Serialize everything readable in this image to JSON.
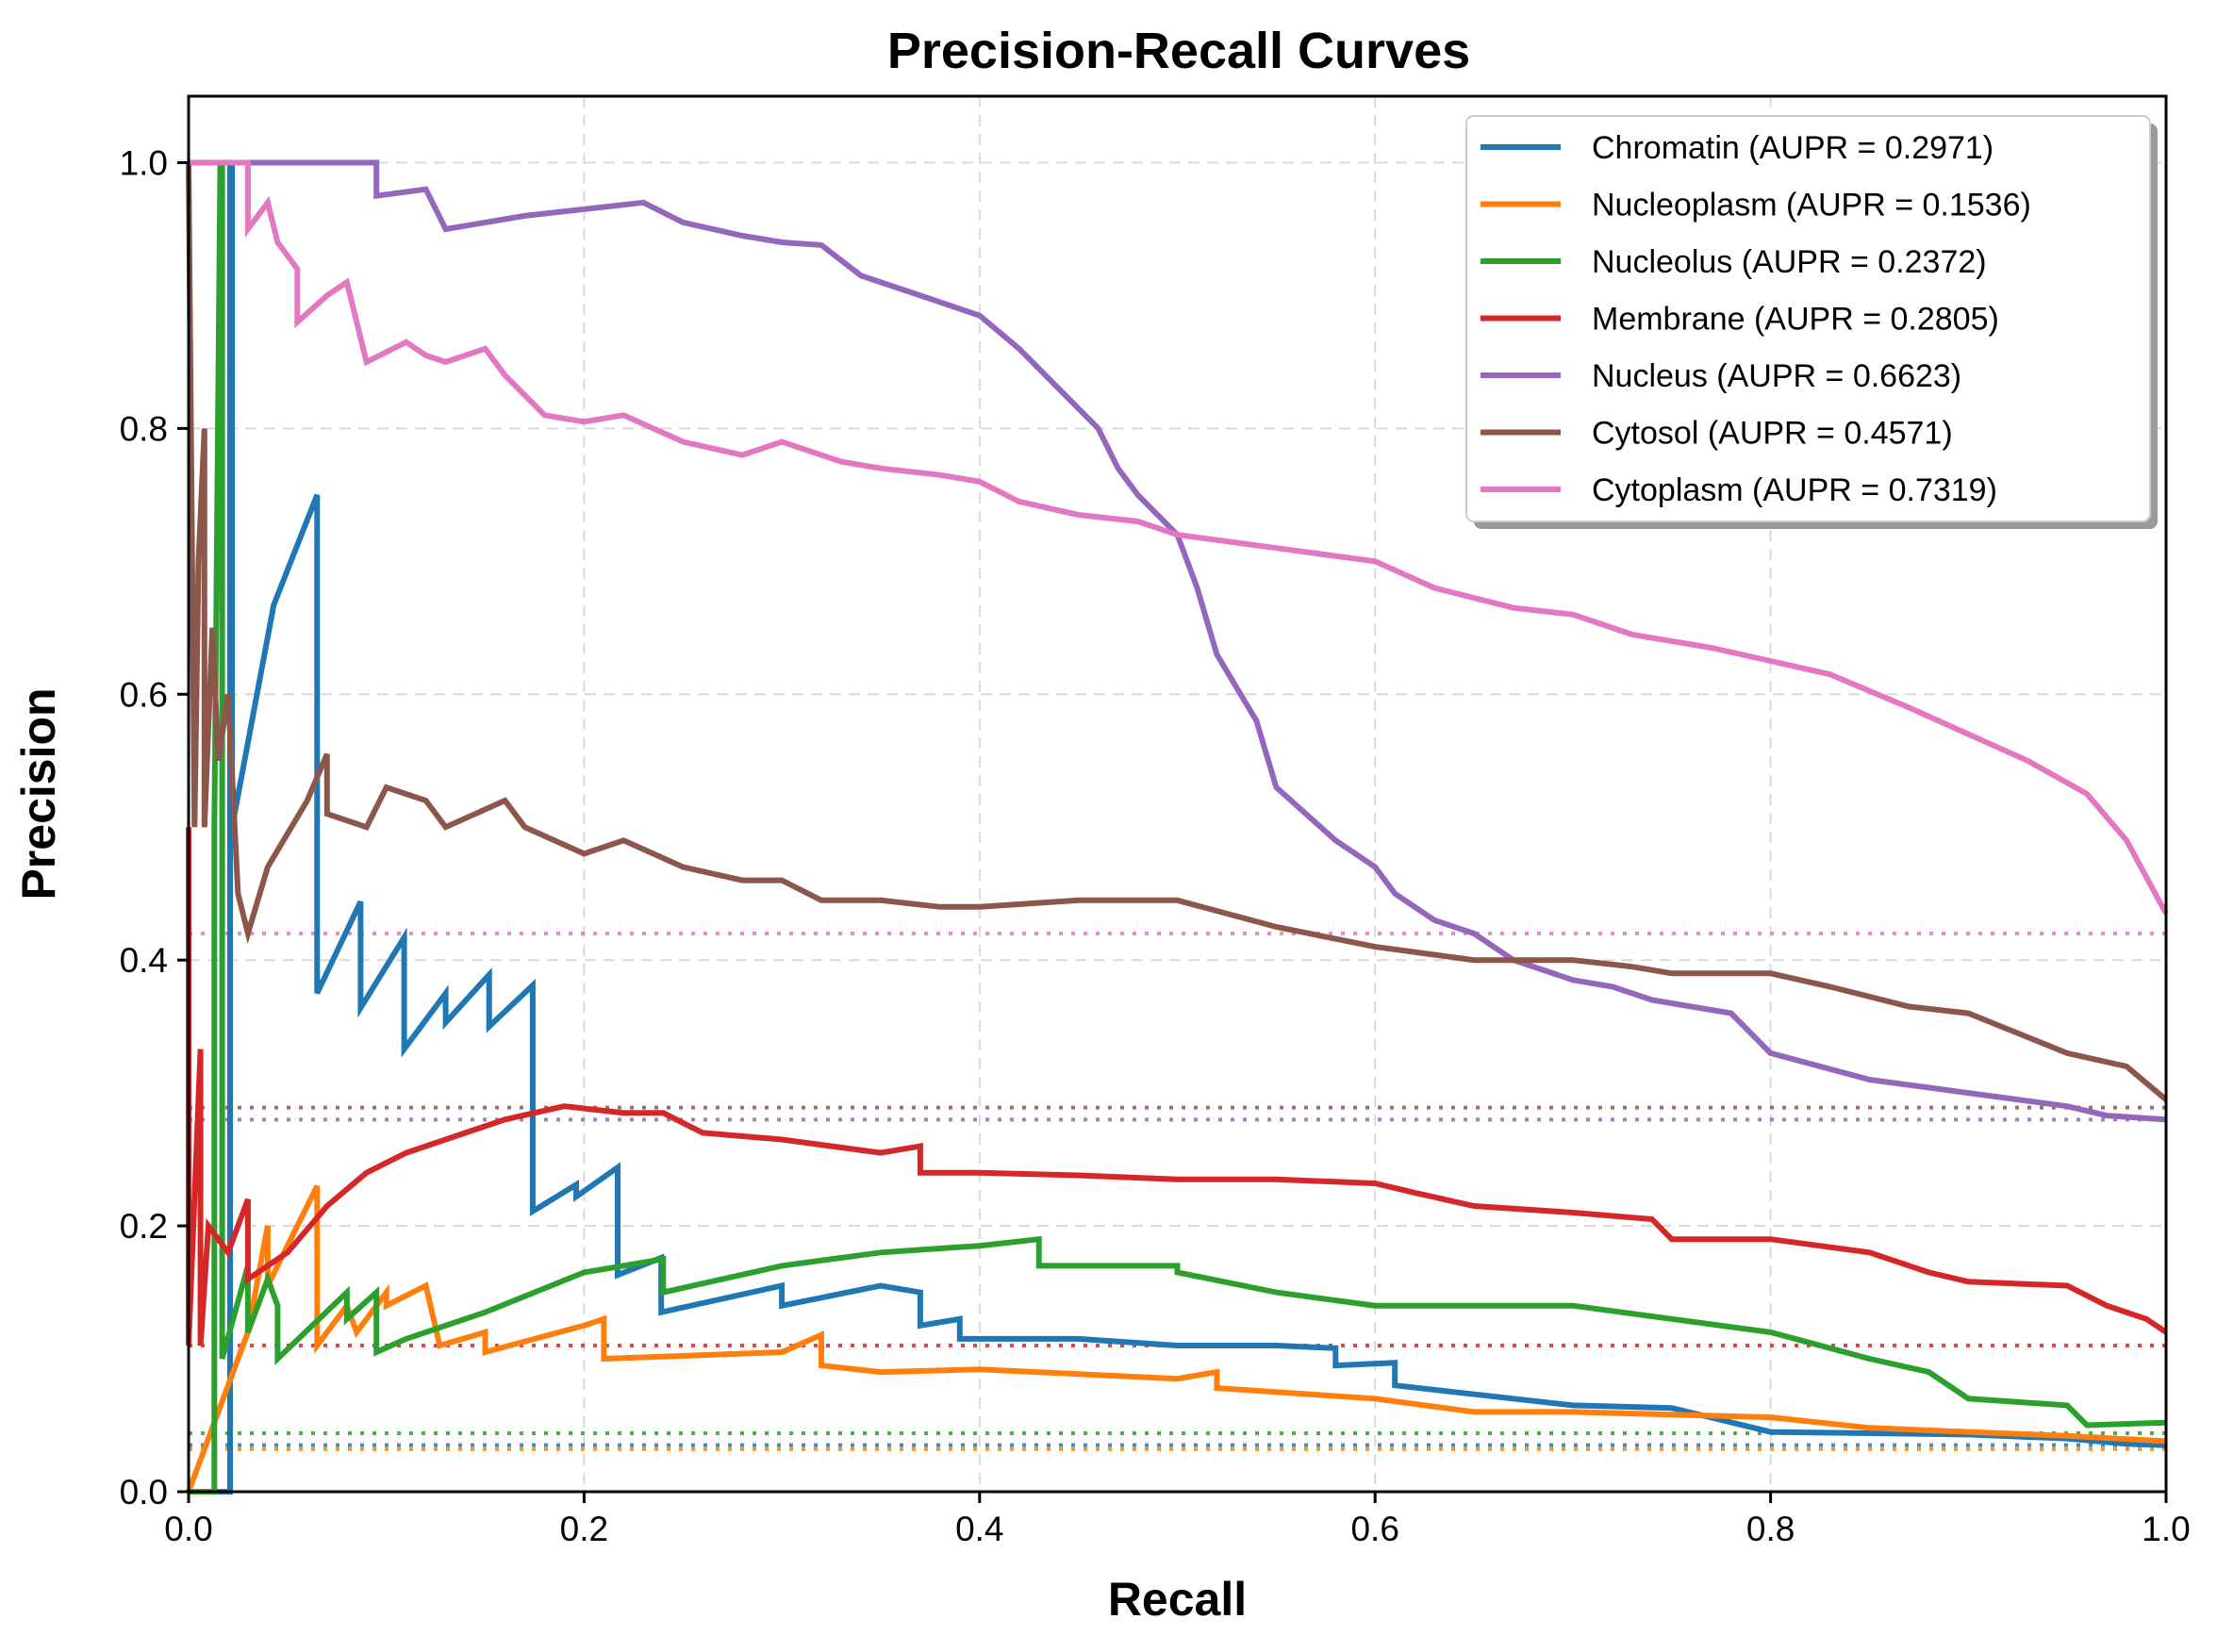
{
  "chart_data": {
    "type": "line",
    "title": "Precision-Recall Curves",
    "xlabel": "Recall",
    "ylabel": "Precision",
    "xlim": [
      0.0,
      1.0
    ],
    "ylim": [
      0.0,
      1.05
    ],
    "xticks": [
      "0.0",
      "0.2",
      "0.4",
      "0.6",
      "0.8",
      "1.0"
    ],
    "yticks": [
      "0.0",
      "0.2",
      "0.4",
      "0.6",
      "0.8",
      "1.0"
    ],
    "grid": true,
    "legend_position": "top-right",
    "series": [
      {
        "name": "Chromatin (AUPR = 0.2971)",
        "color": "#1f77b4",
        "baseline": 0.035,
        "points": [
          [
            0,
            0
          ],
          [
            0.021,
            0
          ],
          [
            0.021,
            1.0
          ],
          [
            0.022,
            1.0
          ],
          [
            0.022,
            0.5
          ],
          [
            0.043,
            0.667
          ],
          [
            0.065,
            0.75
          ],
          [
            0.065,
            0.375
          ],
          [
            0.087,
            0.444
          ],
          [
            0.087,
            0.364
          ],
          [
            0.109,
            0.417
          ],
          [
            0.109,
            0.333
          ],
          [
            0.13,
            0.375
          ],
          [
            0.13,
            0.353
          ],
          [
            0.152,
            0.389
          ],
          [
            0.152,
            0.35
          ],
          [
            0.174,
            0.381
          ],
          [
            0.174,
            0.211
          ],
          [
            0.196,
            0.231
          ],
          [
            0.196,
            0.222
          ],
          [
            0.217,
            0.244
          ],
          [
            0.217,
            0.163
          ],
          [
            0.239,
            0.176
          ],
          [
            0.239,
            0.135
          ],
          [
            0.3,
            0.155
          ],
          [
            0.3,
            0.14
          ],
          [
            0.35,
            0.155
          ],
          [
            0.37,
            0.15
          ],
          [
            0.37,
            0.125
          ],
          [
            0.39,
            0.13
          ],
          [
            0.39,
            0.115
          ],
          [
            0.45,
            0.115
          ],
          [
            0.5,
            0.11
          ],
          [
            0.55,
            0.11
          ],
          [
            0.58,
            0.108
          ],
          [
            0.58,
            0.095
          ],
          [
            0.61,
            0.097
          ],
          [
            0.61,
            0.08
          ],
          [
            0.7,
            0.065
          ],
          [
            0.75,
            0.063
          ],
          [
            0.8,
            0.045
          ],
          [
            0.9,
            0.043
          ],
          [
            0.95,
            0.04
          ],
          [
            0.98,
            0.036
          ],
          [
            1.0,
            0.035
          ]
        ]
      },
      {
        "name": "Nucleoplasm (AUPR = 0.1536)",
        "color": "#ff7f0e",
        "baseline": 0.032,
        "points": [
          [
            0,
            0
          ],
          [
            0.03,
            0.12
          ],
          [
            0.04,
            0.2
          ],
          [
            0.04,
            0.155
          ],
          [
            0.065,
            0.23
          ],
          [
            0.065,
            0.11
          ],
          [
            0.08,
            0.14
          ],
          [
            0.085,
            0.12
          ],
          [
            0.1,
            0.15
          ],
          [
            0.1,
            0.14
          ],
          [
            0.12,
            0.155
          ],
          [
            0.127,
            0.11
          ],
          [
            0.15,
            0.12
          ],
          [
            0.15,
            0.105
          ],
          [
            0.2,
            0.125
          ],
          [
            0.21,
            0.13
          ],
          [
            0.21,
            0.1
          ],
          [
            0.3,
            0.105
          ],
          [
            0.32,
            0.118
          ],
          [
            0.32,
            0.095
          ],
          [
            0.35,
            0.09
          ],
          [
            0.4,
            0.092
          ],
          [
            0.5,
            0.085
          ],
          [
            0.52,
            0.09
          ],
          [
            0.52,
            0.078
          ],
          [
            0.6,
            0.07
          ],
          [
            0.65,
            0.06
          ],
          [
            0.7,
            0.06
          ],
          [
            0.75,
            0.058
          ],
          [
            0.8,
            0.056
          ],
          [
            0.85,
            0.048
          ],
          [
            0.9,
            0.045
          ],
          [
            0.95,
            0.042
          ],
          [
            1.0,
            0.038
          ]
        ]
      },
      {
        "name": "Nucleolus (AUPR = 0.2372)",
        "color": "#2ca02c",
        "baseline": 0.044,
        "points": [
          [
            0,
            0
          ],
          [
            0.013,
            0
          ],
          [
            0.013,
            0.5
          ],
          [
            0.016,
            1.0
          ],
          [
            0.017,
            1.0
          ],
          [
            0.017,
            0.1
          ],
          [
            0.03,
            0.17
          ],
          [
            0.03,
            0.12
          ],
          [
            0.04,
            0.16
          ],
          [
            0.045,
            0.14
          ],
          [
            0.045,
            0.1
          ],
          [
            0.08,
            0.15
          ],
          [
            0.08,
            0.13
          ],
          [
            0.095,
            0.15
          ],
          [
            0.095,
            0.105
          ],
          [
            0.11,
            0.115
          ],
          [
            0.15,
            0.135
          ],
          [
            0.2,
            0.165
          ],
          [
            0.24,
            0.175
          ],
          [
            0.24,
            0.15
          ],
          [
            0.3,
            0.17
          ],
          [
            0.35,
            0.18
          ],
          [
            0.4,
            0.185
          ],
          [
            0.43,
            0.19
          ],
          [
            0.43,
            0.17
          ],
          [
            0.5,
            0.17
          ],
          [
            0.5,
            0.165
          ],
          [
            0.55,
            0.15
          ],
          [
            0.6,
            0.14
          ],
          [
            0.65,
            0.14
          ],
          [
            0.7,
            0.14
          ],
          [
            0.75,
            0.13
          ],
          [
            0.8,
            0.12
          ],
          [
            0.85,
            0.1
          ],
          [
            0.88,
            0.09
          ],
          [
            0.9,
            0.07
          ],
          [
            0.95,
            0.065
          ],
          [
            0.96,
            0.05
          ],
          [
            1.0,
            0.052
          ]
        ]
      },
      {
        "name": "Membrane (AUPR = 0.2805)",
        "color": "#d62728",
        "baseline": 0.11,
        "points": [
          [
            0,
            0.5
          ],
          [
            0,
            0.11
          ],
          [
            0.006,
            0.333
          ],
          [
            0.006,
            0.11
          ],
          [
            0.01,
            0.2
          ],
          [
            0.02,
            0.18
          ],
          [
            0.03,
            0.22
          ],
          [
            0.03,
            0.16
          ],
          [
            0.05,
            0.18
          ],
          [
            0.07,
            0.215
          ],
          [
            0.09,
            0.24
          ],
          [
            0.11,
            0.255
          ],
          [
            0.14,
            0.27
          ],
          [
            0.16,
            0.28
          ],
          [
            0.19,
            0.29
          ],
          [
            0.22,
            0.285
          ],
          [
            0.24,
            0.285
          ],
          [
            0.26,
            0.27
          ],
          [
            0.3,
            0.265
          ],
          [
            0.35,
            0.255
          ],
          [
            0.37,
            0.26
          ],
          [
            0.37,
            0.24
          ],
          [
            0.4,
            0.24
          ],
          [
            0.45,
            0.238
          ],
          [
            0.5,
            0.235
          ],
          [
            0.55,
            0.235
          ],
          [
            0.6,
            0.232
          ],
          [
            0.62,
            0.225
          ],
          [
            0.65,
            0.215
          ],
          [
            0.7,
            0.21
          ],
          [
            0.74,
            0.205
          ],
          [
            0.75,
            0.19
          ],
          [
            0.8,
            0.19
          ],
          [
            0.85,
            0.18
          ],
          [
            0.88,
            0.165
          ],
          [
            0.9,
            0.158
          ],
          [
            0.95,
            0.155
          ],
          [
            0.97,
            0.14
          ],
          [
            0.99,
            0.13
          ],
          [
            1.0,
            0.12
          ]
        ]
      },
      {
        "name": "Nucleus (AUPR = 0.6623)",
        "color": "#9467bd",
        "baseline": 0.28,
        "points": [
          [
            0,
            1.0
          ],
          [
            0.095,
            1.0
          ],
          [
            0.095,
            0.975
          ],
          [
            0.12,
            0.98
          ],
          [
            0.13,
            0.95
          ],
          [
            0.17,
            0.96
          ],
          [
            0.23,
            0.97
          ],
          [
            0.25,
            0.955
          ],
          [
            0.28,
            0.945
          ],
          [
            0.3,
            0.94
          ],
          [
            0.32,
            0.938
          ],
          [
            0.34,
            0.915
          ],
          [
            0.37,
            0.9
          ],
          [
            0.4,
            0.885
          ],
          [
            0.42,
            0.86
          ],
          [
            0.44,
            0.83
          ],
          [
            0.46,
            0.8
          ],
          [
            0.47,
            0.77
          ],
          [
            0.48,
            0.75
          ],
          [
            0.5,
            0.72
          ],
          [
            0.51,
            0.68
          ],
          [
            0.52,
            0.63
          ],
          [
            0.54,
            0.58
          ],
          [
            0.55,
            0.53
          ],
          [
            0.58,
            0.49
          ],
          [
            0.6,
            0.47
          ],
          [
            0.61,
            0.45
          ],
          [
            0.63,
            0.43
          ],
          [
            0.65,
            0.42
          ],
          [
            0.67,
            0.4
          ],
          [
            0.7,
            0.385
          ],
          [
            0.72,
            0.38
          ],
          [
            0.74,
            0.37
          ],
          [
            0.78,
            0.36
          ],
          [
            0.8,
            0.33
          ],
          [
            0.85,
            0.31
          ],
          [
            0.9,
            0.3
          ],
          [
            0.95,
            0.29
          ],
          [
            0.97,
            0.283
          ],
          [
            1.0,
            0.28
          ]
        ]
      },
      {
        "name": "Cytosol (AUPR = 0.4571)",
        "color": "#8c564b",
        "baseline": 0.289,
        "points": [
          [
            0,
            1.0
          ],
          [
            0.003,
            0.5
          ],
          [
            0.005,
            0.7
          ],
          [
            0.008,
            0.8
          ],
          [
            0.008,
            0.5
          ],
          [
            0.012,
            0.65
          ],
          [
            0.015,
            0.55
          ],
          [
            0.02,
            0.6
          ],
          [
            0.025,
            0.45
          ],
          [
            0.03,
            0.42
          ],
          [
            0.04,
            0.47
          ],
          [
            0.06,
            0.52
          ],
          [
            0.07,
            0.555
          ],
          [
            0.07,
            0.51
          ],
          [
            0.09,
            0.5
          ],
          [
            0.1,
            0.53
          ],
          [
            0.12,
            0.52
          ],
          [
            0.13,
            0.5
          ],
          [
            0.16,
            0.52
          ],
          [
            0.17,
            0.5
          ],
          [
            0.2,
            0.48
          ],
          [
            0.22,
            0.49
          ],
          [
            0.25,
            0.47
          ],
          [
            0.28,
            0.46
          ],
          [
            0.3,
            0.46
          ],
          [
            0.32,
            0.445
          ],
          [
            0.35,
            0.445
          ],
          [
            0.38,
            0.44
          ],
          [
            0.4,
            0.44
          ],
          [
            0.45,
            0.445
          ],
          [
            0.5,
            0.445
          ],
          [
            0.55,
            0.425
          ],
          [
            0.6,
            0.41
          ],
          [
            0.65,
            0.4
          ],
          [
            0.7,
            0.4
          ],
          [
            0.73,
            0.395
          ],
          [
            0.75,
            0.39
          ],
          [
            0.8,
            0.39
          ],
          [
            0.83,
            0.38
          ],
          [
            0.87,
            0.365
          ],
          [
            0.9,
            0.36
          ],
          [
            0.95,
            0.33
          ],
          [
            0.98,
            0.32
          ],
          [
            1.0,
            0.295
          ]
        ]
      },
      {
        "name": "Cytoplasm (AUPR = 0.7319)",
        "color": "#e377c2",
        "baseline": 0.42,
        "points": [
          [
            0,
            1.0
          ],
          [
            0.03,
            1.0
          ],
          [
            0.03,
            0.95
          ],
          [
            0.04,
            0.97
          ],
          [
            0.045,
            0.94
          ],
          [
            0.055,
            0.92
          ],
          [
            0.055,
            0.88
          ],
          [
            0.07,
            0.9
          ],
          [
            0.08,
            0.91
          ],
          [
            0.09,
            0.85
          ],
          [
            0.11,
            0.865
          ],
          [
            0.12,
            0.855
          ],
          [
            0.13,
            0.85
          ],
          [
            0.15,
            0.86
          ],
          [
            0.16,
            0.84
          ],
          [
            0.18,
            0.81
          ],
          [
            0.2,
            0.805
          ],
          [
            0.22,
            0.81
          ],
          [
            0.25,
            0.79
          ],
          [
            0.28,
            0.78
          ],
          [
            0.3,
            0.79
          ],
          [
            0.33,
            0.775
          ],
          [
            0.35,
            0.77
          ],
          [
            0.38,
            0.765
          ],
          [
            0.4,
            0.76
          ],
          [
            0.42,
            0.745
          ],
          [
            0.45,
            0.735
          ],
          [
            0.48,
            0.73
          ],
          [
            0.5,
            0.72
          ],
          [
            0.55,
            0.71
          ],
          [
            0.6,
            0.7
          ],
          [
            0.63,
            0.68
          ],
          [
            0.67,
            0.665
          ],
          [
            0.7,
            0.66
          ],
          [
            0.73,
            0.645
          ],
          [
            0.77,
            0.635
          ],
          [
            0.8,
            0.625
          ],
          [
            0.83,
            0.615
          ],
          [
            0.87,
            0.59
          ],
          [
            0.9,
            0.57
          ],
          [
            0.93,
            0.55
          ],
          [
            0.96,
            0.525
          ],
          [
            0.98,
            0.49
          ],
          [
            1.0,
            0.435
          ]
        ]
      }
    ]
  }
}
